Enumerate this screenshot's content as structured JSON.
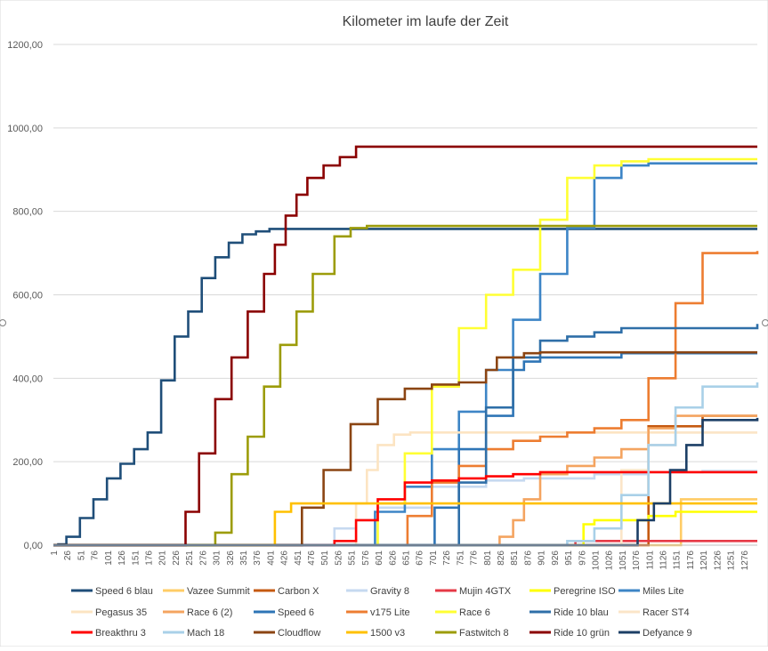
{
  "chart_data": {
    "type": "line",
    "title": "Kilometer im laufe der Zeit",
    "xlabel": "",
    "ylabel": "",
    "ylim": [
      0,
      1200
    ],
    "yticks": [
      "0,00",
      "200,00",
      "400,00",
      "600,00",
      "800,00",
      "1000,00",
      "1200,00"
    ],
    "yticks_values": [
      0,
      200,
      400,
      600,
      800,
      1000,
      1200
    ],
    "xlim": [
      1,
      1301
    ],
    "xticks": [
      "1",
      "26",
      "51",
      "76",
      "101",
      "126",
      "151",
      "176",
      "201",
      "226",
      "251",
      "276",
      "301",
      "326",
      "351",
      "376",
      "401",
      "426",
      "451",
      "476",
      "501",
      "526",
      "551",
      "576",
      "601",
      "626",
      "651",
      "676",
      "701",
      "726",
      "751",
      "776",
      "801",
      "826",
      "851",
      "876",
      "901",
      "926",
      "951",
      "976",
      "1001",
      "1026",
      "1051",
      "1076",
      "1101",
      "1126",
      "1151",
      "1176",
      "1201",
      "1226",
      "1251",
      "1276"
    ],
    "grid": "horizontal",
    "legend_position": "bottom",
    "series": [
      {
        "name": "Speed 6 blau",
        "color": "#1f4e79",
        "x": [
          1,
          10,
          25,
          50,
          75,
          100,
          125,
          150,
          175,
          200,
          225,
          250,
          275,
          300,
          325,
          350,
          375,
          400,
          425,
          450,
          600,
          1301
        ],
        "y": [
          0,
          2,
          20,
          65,
          110,
          160,
          195,
          230,
          270,
          395,
          500,
          560,
          640,
          690,
          725,
          745,
          752,
          758,
          758,
          758,
          758,
          758
        ]
      },
      {
        "name": "Vazee Summit",
        "color": "#ffcc66",
        "x": [
          1,
          1150,
          1160,
          1301
        ],
        "y": [
          0,
          0,
          110,
          110
        ]
      },
      {
        "name": "Carbon X",
        "color": "#c55a11",
        "x": [
          1,
          1020,
          1100,
          1200,
          1301
        ],
        "y": [
          0,
          0,
          285,
          310,
          310
        ]
      },
      {
        "name": "Gravity 8",
        "color": "#c6d9f0",
        "x": [
          1,
          480,
          520,
          560,
          600,
          700,
          800,
          870,
          1000,
          1100,
          1200,
          1301
        ],
        "y": [
          0,
          0,
          40,
          60,
          90,
          140,
          155,
          160,
          170,
          175,
          178,
          178
        ]
      },
      {
        "name": "Mujin 4GTX",
        "color": "#e63946",
        "x": [
          1,
          955,
          965,
          1301
        ],
        "y": [
          0,
          0,
          10,
          10
        ]
      },
      {
        "name": "Peregrine ISO",
        "color": "#ffff00",
        "x": [
          1,
          950,
          980,
          1000,
          1050,
          1100,
          1150,
          1301
        ],
        "y": [
          0,
          0,
          50,
          60,
          60,
          70,
          80,
          80
        ]
      },
      {
        "name": "Miles Lite",
        "color": "#3d85c6",
        "x": [
          1,
          585,
          595,
          650,
          700,
          750,
          800,
          850,
          900,
          950,
          1000,
          1050,
          1100,
          1301
        ],
        "y": [
          0,
          0,
          80,
          140,
          230,
          320,
          420,
          540,
          650,
          760,
          880,
          910,
          915,
          915
        ]
      },
      {
        "name": "Pegasus 35",
        "color": "#fce4c2",
        "x": [
          1,
          530,
          560,
          580,
          600,
          630,
          660,
          1301
        ],
        "y": [
          0,
          0,
          100,
          180,
          240,
          265,
          270,
          270
        ]
      },
      {
        "name": "Race 6 (2)",
        "color": "#f4a460",
        "x": [
          1,
          810,
          825,
          850,
          870,
          900,
          950,
          1000,
          1050,
          1100,
          1150,
          1200,
          1301
        ],
        "y": [
          0,
          0,
          20,
          60,
          110,
          170,
          190,
          210,
          230,
          280,
          310,
          310,
          310
        ]
      },
      {
        "name": "Speed 6",
        "color": "#2e75b6",
        "x": [
          1,
          690,
          705,
          750,
          800,
          850,
          870,
          900,
          1000,
          1050,
          1100,
          1150,
          1200,
          1301
        ],
        "y": [
          0,
          0,
          90,
          230,
          310,
          420,
          440,
          450,
          450,
          460,
          460,
          460,
          460,
          460
        ]
      },
      {
        "name": "v175 Lite",
        "color": "#ed7d31",
        "x": [
          1,
          645,
          655,
          700,
          750,
          800,
          850,
          900,
          950,
          1000,
          1050,
          1100,
          1150,
          1200,
          1301
        ],
        "y": [
          0,
          0,
          70,
          150,
          190,
          230,
          250,
          260,
          270,
          280,
          300,
          400,
          580,
          700,
          705
        ]
      },
      {
        "name": "Race 6",
        "color": "#ffff33",
        "x": [
          1,
          580,
          600,
          650,
          700,
          750,
          800,
          850,
          900,
          950,
          1000,
          1050,
          1100,
          1150,
          1301
        ],
        "y": [
          0,
          0,
          100,
          220,
          380,
          520,
          600,
          660,
          780,
          880,
          910,
          920,
          925,
          925,
          925
        ]
      },
      {
        "name": "Ride 10 blau",
        "color": "#2f6fa8",
        "x": [
          1,
          700,
          750,
          800,
          850,
          900,
          950,
          1000,
          1050,
          1301
        ],
        "y": [
          0,
          0,
          150,
          330,
          450,
          490,
          500,
          510,
          520,
          530
        ]
      },
      {
        "name": "Racer ST4",
        "color": "#fbe5c8",
        "x": [
          1,
          1000,
          1050,
          1100,
          1150,
          1200,
          1301
        ],
        "y": [
          0,
          0,
          180,
          240,
          270,
          270,
          270
        ]
      },
      {
        "name": "Breakthru 3",
        "color": "#ff0000",
        "x": [
          1,
          500,
          520,
          560,
          600,
          650,
          700,
          750,
          800,
          850,
          900,
          1301
        ],
        "y": [
          0,
          0,
          10,
          60,
          110,
          150,
          155,
          160,
          165,
          170,
          175,
          175
        ]
      },
      {
        "name": "Mach 18",
        "color": "#a9d0e8",
        "x": [
          1,
          890,
          950,
          1000,
          1050,
          1100,
          1150,
          1200,
          1301
        ],
        "y": [
          0,
          0,
          10,
          40,
          120,
          240,
          330,
          380,
          390
        ]
      },
      {
        "name": "Cloudflow",
        "color": "#8b4513",
        "x": [
          1,
          440,
          460,
          500,
          550,
          600,
          650,
          700,
          750,
          800,
          820,
          870,
          900,
          1301
        ],
        "y": [
          0,
          0,
          90,
          180,
          290,
          350,
          375,
          385,
          390,
          420,
          450,
          460,
          462,
          462
        ]
      },
      {
        "name": "1500 v3",
        "color": "#ffc000",
        "x": [
          1,
          400,
          410,
          440,
          1301
        ],
        "y": [
          0,
          0,
          80,
          100,
          100
        ]
      },
      {
        "name": "Fastwitch 8",
        "color": "#9c9c0a",
        "x": [
          1,
          290,
          300,
          330,
          360,
          390,
          420,
          450,
          480,
          520,
          550,
          580,
          1301
        ],
        "y": [
          0,
          0,
          30,
          170,
          260,
          380,
          480,
          560,
          650,
          740,
          760,
          765,
          765
        ]
      },
      {
        "name": "Ride 10 grün",
        "color": "#8b0000",
        "x": [
          1,
          230,
          245,
          270,
          300,
          330,
          360,
          390,
          410,
          430,
          450,
          470,
          500,
          530,
          560,
          1301
        ],
        "y": [
          0,
          0,
          80,
          220,
          350,
          450,
          560,
          650,
          720,
          790,
          840,
          880,
          910,
          930,
          955,
          955
        ]
      },
      {
        "name": "Defyance 9",
        "color": "#1c3f66",
        "x": [
          1,
          1050,
          1080,
          1110,
          1140,
          1170,
          1200,
          1301
        ],
        "y": [
          0,
          0,
          60,
          100,
          180,
          240,
          300,
          305
        ]
      }
    ]
  }
}
